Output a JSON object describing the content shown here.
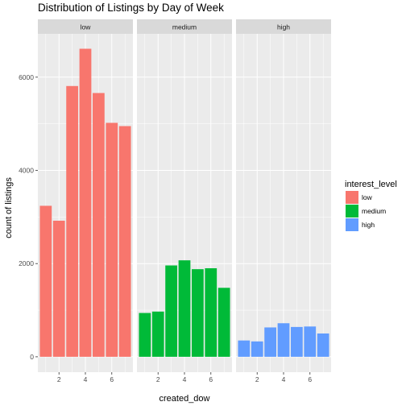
{
  "chart_data": {
    "type": "bar",
    "title": "Distribution of Listings by Day of Week",
    "xlabel": "created_dow",
    "ylabel": "count of listings",
    "facet_variable": "interest_level",
    "categories": [
      1,
      2,
      3,
      4,
      5,
      6,
      7
    ],
    "x_ticks": [
      2,
      4,
      6
    ],
    "xlim": [
      0.4,
      7.6
    ],
    "y_ticks": [
      0,
      2000,
      4000,
      6000
    ],
    "ylim": [
      -330,
      6930
    ],
    "grid": true,
    "legend": {
      "title": "interest_level",
      "position": "right"
    },
    "series": [
      {
        "name": "low",
        "color": "#F8766D",
        "values": [
          3240,
          2920,
          5810,
          6610,
          5660,
          5020,
          4950
        ]
      },
      {
        "name": "medium",
        "color": "#00BA38",
        "values": [
          940,
          970,
          1960,
          2070,
          1880,
          1900,
          1480
        ]
      },
      {
        "name": "high",
        "color": "#619CFF",
        "values": [
          350,
          330,
          630,
          720,
          640,
          650,
          500
        ]
      }
    ]
  }
}
